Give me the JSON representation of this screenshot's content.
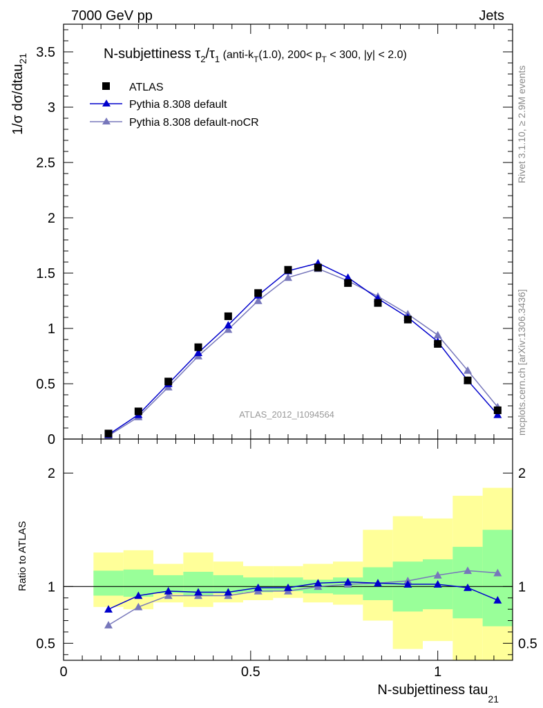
{
  "header": {
    "left": "7000 GeV pp",
    "right": "Jets"
  },
  "side_labels": {
    "rivet": "Rivet 3.1.10, ≥ 2.9M events",
    "mcplots": "mcplots.cern.ch [arXiv:1306.3436]"
  },
  "watermark": "ATLAS_2012_I1094564",
  "colors": {
    "atlas": "#000000",
    "default": "#0000cc",
    "nocr": "#7777bb",
    "band_inner": "#99ff99",
    "band_outer": "#ffff99"
  },
  "chart_data": [
    {
      "type": "line",
      "title_parts": {
        "prefix": "N-subjettiness τ",
        "sub1": "2",
        "slash": "/τ",
        "sub2": "1",
        "rest1": " (anti-k",
        "sub3": "T",
        "rest2": "(1.0), 200< p",
        "sub4": "T",
        "rest3": " < 300, |y| < 2.0)"
      },
      "ylabel_main": "1/σ dσ/dtau",
      "ylabel_sub": "21",
      "xlim": [
        0,
        1.2
      ],
      "ylim": [
        0,
        3.75
      ],
      "yticks": [
        0,
        0.5,
        1,
        1.5,
        2,
        2.5,
        3,
        3.5
      ],
      "ytick_labels": [
        "0",
        "0.5",
        "1",
        "1.5",
        "2",
        "2.5",
        "3",
        "3.5"
      ],
      "legend_position": "top-left",
      "x": [
        0.12,
        0.2,
        0.28,
        0.36,
        0.44,
        0.52,
        0.6,
        0.68,
        0.76,
        0.84,
        0.92,
        1.0,
        1.08,
        1.16
      ],
      "series": [
        {
          "name": "ATLAS",
          "marker": "square",
          "values": [
            0.05,
            0.25,
            0.52,
            0.83,
            1.11,
            1.32,
            1.53,
            1.55,
            1.41,
            1.23,
            1.08,
            0.86,
            0.53,
            0.26
          ]
        },
        {
          "name": "Pythia 8.308 default",
          "marker": "triangle",
          "values": [
            0.04,
            0.22,
            0.5,
            0.78,
            1.03,
            1.3,
            1.52,
            1.59,
            1.46,
            1.27,
            1.1,
            0.88,
            0.53,
            0.22
          ]
        },
        {
          "name": "Pythia 8.308 default-noCR",
          "marker": "triangle",
          "values": [
            0.03,
            0.2,
            0.47,
            0.75,
            0.99,
            1.25,
            1.46,
            1.54,
            1.43,
            1.29,
            1.13,
            0.94,
            0.62,
            0.29
          ]
        }
      ]
    },
    {
      "type": "line",
      "ylabel": "Ratio to ATLAS",
      "xlabel_main": "N-subjettiness tau",
      "xlabel_sub": "21",
      "xlim": [
        0,
        1.2
      ],
      "ylim": [
        0.35,
        2.3
      ],
      "xticks": [
        0,
        0.5,
        1
      ],
      "xtick_labels": [
        "0",
        "0.5",
        "1"
      ],
      "yticks": [
        0.5,
        1,
        2
      ],
      "ytick_labels": [
        "0.5",
        "1",
        "2"
      ],
      "bins": [
        [
          0.08,
          0.16
        ],
        [
          0.16,
          0.24
        ],
        [
          0.24,
          0.32
        ],
        [
          0.32,
          0.4
        ],
        [
          0.4,
          0.48
        ],
        [
          0.48,
          0.56
        ],
        [
          0.56,
          0.64
        ],
        [
          0.64,
          0.72
        ],
        [
          0.72,
          0.8
        ],
        [
          0.8,
          0.88
        ],
        [
          0.88,
          0.96
        ],
        [
          0.96,
          1.04
        ],
        [
          1.04,
          1.12
        ],
        [
          1.12,
          1.2
        ]
      ],
      "band_inner": [
        [
          0.92,
          1.14
        ],
        [
          0.91,
          1.15
        ],
        [
          0.94,
          1.1
        ],
        [
          0.92,
          1.13
        ],
        [
          0.94,
          1.1
        ],
        [
          0.95,
          1.08
        ],
        [
          0.96,
          1.08
        ],
        [
          0.94,
          1.06
        ],
        [
          0.93,
          1.08
        ],
        [
          0.88,
          1.17
        ],
        [
          0.78,
          1.22
        ],
        [
          0.8,
          1.24
        ],
        [
          0.72,
          1.35
        ],
        [
          0.65,
          1.5
        ]
      ],
      "band_outer": [
        [
          0.82,
          1.3
        ],
        [
          0.8,
          1.32
        ],
        [
          0.86,
          1.2
        ],
        [
          0.82,
          1.3
        ],
        [
          0.86,
          1.22
        ],
        [
          0.88,
          1.18
        ],
        [
          0.9,
          1.18
        ],
        [
          0.86,
          1.2
        ],
        [
          0.84,
          1.22
        ],
        [
          0.7,
          1.5
        ],
        [
          0.45,
          1.62
        ],
        [
          0.52,
          1.6
        ],
        [
          0.35,
          1.8
        ],
        [
          0.35,
          1.87
        ]
      ],
      "x": [
        0.12,
        0.2,
        0.28,
        0.36,
        0.44,
        0.52,
        0.6,
        0.68,
        0.76,
        0.84,
        0.92,
        1.0,
        1.08,
        1.16
      ],
      "series": [
        {
          "name": "Pythia 8.308 default",
          "values": [
            0.8,
            0.92,
            0.96,
            0.95,
            0.95,
            0.99,
            0.99,
            1.03,
            1.04,
            1.03,
            1.02,
            1.02,
            0.99,
            0.88
          ]
        },
        {
          "name": "Pythia 8.308 default-noCR",
          "values": [
            0.66,
            0.82,
            0.92,
            0.92,
            0.92,
            0.96,
            0.96,
            1.0,
            1.02,
            1.03,
            1.05,
            1.1,
            1.14,
            1.12
          ]
        }
      ]
    }
  ]
}
